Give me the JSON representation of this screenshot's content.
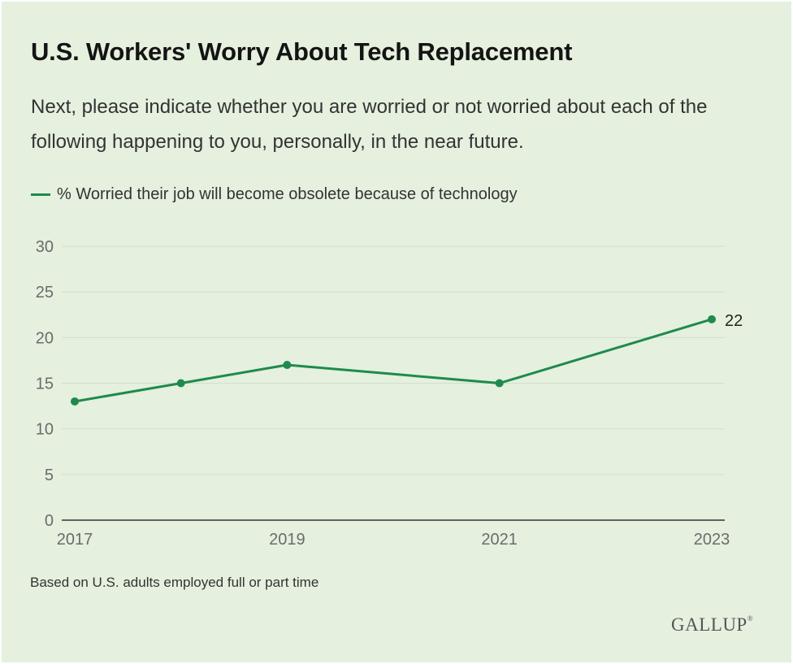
{
  "header": {
    "title": "U.S. Workers' Worry About Tech Replacement",
    "subtitle": "Next, please indicate whether you are worried or not worried about each of the following happening to you, personally, in the near future."
  },
  "footnote": "Based on U.S. adults employed full or part time",
  "brand": {
    "logo_text": "GALLUP",
    "logo_mark": "®"
  },
  "colors": {
    "series": "#1f8a4c",
    "grid": "#d3dfcd",
    "axis": "#333333"
  },
  "chart_data": {
    "type": "line",
    "title": "U.S. Workers' Worry About Tech Replacement",
    "xlabel": "",
    "ylabel": "",
    "x_tick_labels": [
      "2017",
      "2019",
      "2021",
      "2023"
    ],
    "xlim": [
      2017,
      2023
    ],
    "ylim": [
      0,
      30
    ],
    "y_ticks": [
      0,
      5,
      10,
      15,
      20,
      25,
      30
    ],
    "grid": true,
    "legend": "top-left",
    "series": [
      {
        "name": "% Worried their job will become obsolete because of technology",
        "color": "#1f8a4c",
        "x": [
          2017,
          2018,
          2019,
          2021,
          2023
        ],
        "y": [
          13,
          15,
          17,
          15,
          22
        ]
      }
    ],
    "data_labels": [
      {
        "x": 2023,
        "y": 22,
        "text": "22"
      }
    ]
  }
}
